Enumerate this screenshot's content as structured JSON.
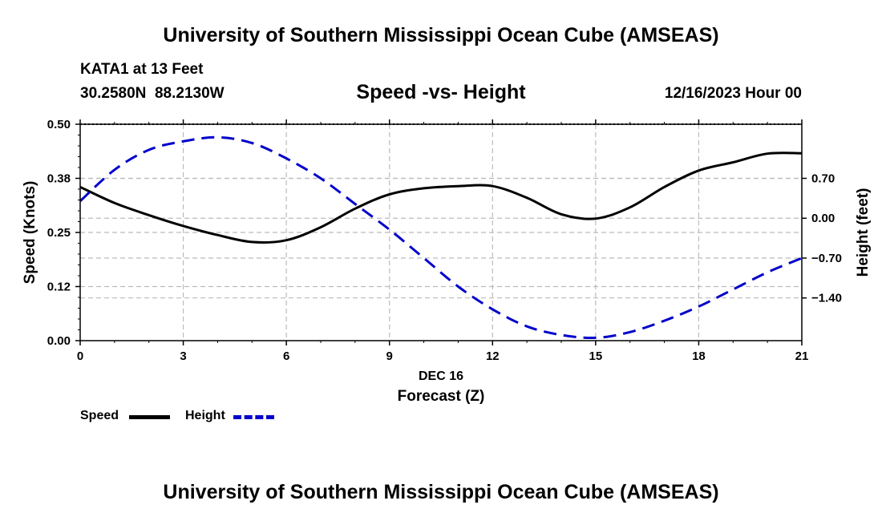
{
  "header": {
    "title": "University of Southern Mississippi Ocean Cube (AMSEAS)",
    "station": "KATA1 at 13 Feet",
    "coords": "30.2580N  88.2130W",
    "subtitle": "Speed -vs- Height",
    "datetime": "12/16/2023 Hour 00"
  },
  "footer": {
    "title": "University of Southern Mississippi Ocean Cube (AMSEAS)"
  },
  "legend": {
    "speed_label": "Speed",
    "height_label": "Height"
  },
  "colors": {
    "speed": "#000000",
    "height": "#0000cc",
    "grid": "#bbbbbb"
  },
  "chart_data": {
    "type": "line",
    "title": "Speed -vs- Height",
    "xlabel": "Forecast (Z)",
    "xlabel_date": "DEC 16",
    "ylabel": "Speed (Knots)",
    "y2label": "Height (feet)",
    "xlim": [
      0,
      21
    ],
    "ylim": [
      0,
      0.5
    ],
    "y2lim": [
      -2.15,
      1.65
    ],
    "x_ticks": [
      0,
      3,
      6,
      9,
      12,
      15,
      18,
      21
    ],
    "x_tick_labels": [
      "0",
      "3",
      "6",
      "9",
      "12",
      "15",
      "18",
      "21"
    ],
    "y_ticks": [
      0.0,
      0.125,
      0.25,
      0.375,
      0.5
    ],
    "y_tick_labels": [
      "0.00",
      "0.12",
      "0.25",
      "0.38",
      "0.50"
    ],
    "y2_ticks": [
      -1.4,
      -0.7,
      0.0,
      0.7
    ],
    "y2_tick_labels": [
      "−1.40",
      "−0.70",
      "0.00",
      "0.70"
    ],
    "grid": true,
    "legend_position": "bottom-left",
    "series": [
      {
        "name": "Speed",
        "axis": "left",
        "style": "solid",
        "x": [
          0,
          1,
          2,
          3,
          4,
          5,
          6,
          7,
          8,
          9,
          10,
          11,
          12,
          13,
          14,
          15,
          16,
          17,
          18,
          19,
          20,
          21
        ],
        "values": [
          0.355,
          0.318,
          0.29,
          0.265,
          0.244,
          0.228,
          0.232,
          0.262,
          0.305,
          0.338,
          0.352,
          0.357,
          0.357,
          0.33,
          0.292,
          0.282,
          0.308,
          0.355,
          0.393,
          0.412,
          0.432,
          0.433
        ]
      },
      {
        "name": "Height",
        "axis": "right",
        "style": "dashed",
        "x": [
          0,
          1,
          2,
          3,
          4,
          5,
          6,
          7,
          8,
          9,
          10,
          11,
          12,
          13,
          14,
          15,
          16,
          17,
          18,
          19,
          20,
          21
        ],
        "values": [
          0.3,
          0.85,
          1.2,
          1.35,
          1.42,
          1.32,
          1.05,
          0.7,
          0.25,
          -0.2,
          -0.7,
          -1.2,
          -1.6,
          -1.9,
          -2.05,
          -2.1,
          -2.0,
          -1.8,
          -1.55,
          -1.25,
          -0.95,
          -0.7
        ]
      }
    ]
  }
}
